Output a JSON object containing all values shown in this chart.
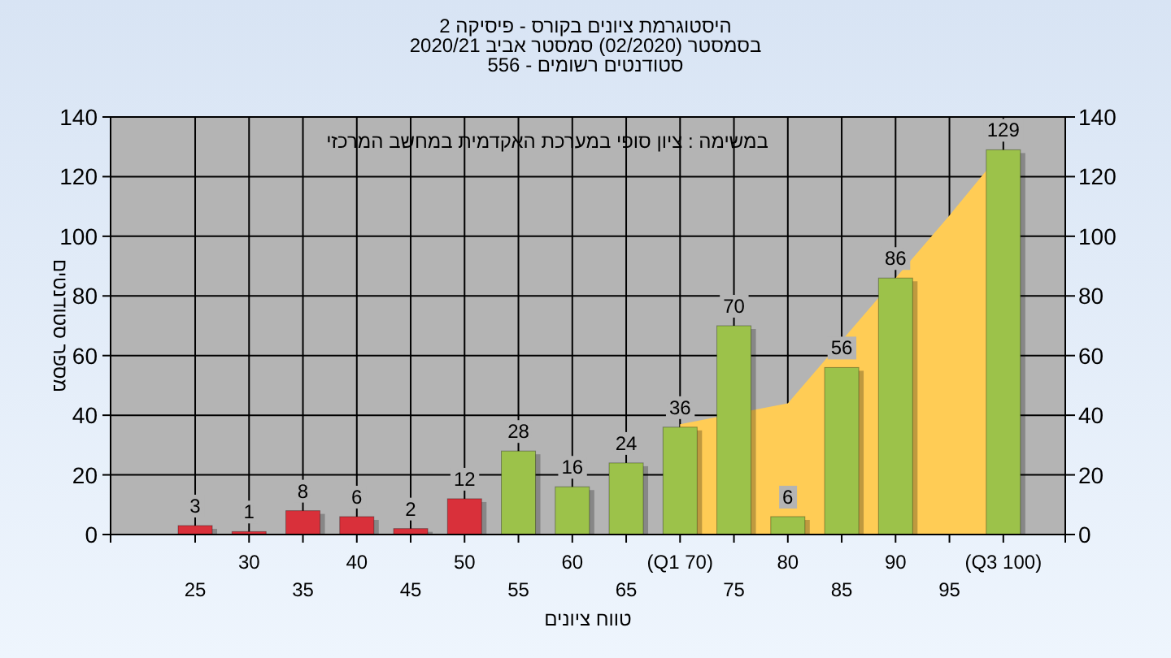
{
  "chart_data": {
    "type": "bar",
    "title": "היסטוגרמת ציונים בקורס - פיסיקה 2",
    "subtitle": [
      "בסמסטר  (02/2020)  סמסטר אביב 2020/21",
      "סטודנטים רשומים - 556"
    ],
    "xlabel": "טווח ציונים",
    "ylabel": "מספר סטודנטים",
    "annotations": [
      "במשימה : ציון סופי במערכת האקדמית במחשב המרכזי"
    ],
    "categories": [
      "25",
      "30",
      "35",
      "40",
      "45",
      "50",
      "55",
      "60",
      "65",
      "(Q1 70)",
      "75",
      "80",
      "85",
      "90",
      "95",
      "(Q3 100)"
    ],
    "series": [
      {
        "type": "area",
        "color": "#ffcc55",
        "values": [
          null,
          null,
          null,
          null,
          null,
          null,
          null,
          null,
          null,
          37,
          null,
          44,
          null,
          86,
          107,
          129
        ]
      },
      {
        "value_labels": [
          "3",
          "1",
          "8",
          "6",
          "2",
          "12",
          "28",
          "16",
          "24",
          "36",
          "70",
          "6",
          "56",
          "86",
          null,
          "129"
        ],
        "colors": [
          "#d9303a",
          "#d9303a",
          "#d9303a",
          "#d9303a",
          "#d9303a",
          "#d9303a",
          "#9cc24a",
          "#9cc24a",
          "#9cc24a",
          "#9cc24a",
          "#9cc24a",
          "#9cc24a",
          "#9cc24a",
          "#9cc24a",
          "#9cc24a",
          "#9cc24a"
        ],
        "values": [
          3,
          1,
          8,
          6,
          2,
          12,
          28,
          16,
          24,
          36,
          70,
          6,
          56,
          86,
          null,
          129
        ]
      }
    ],
    "ylim": [
      0,
      140
    ],
    "yticks": [
      0,
      20,
      40,
      60,
      80,
      100,
      120,
      140
    ],
    "y2lim": [
      0,
      140
    ],
    "y2ticks": [
      0,
      20,
      40,
      60,
      80,
      100,
      120,
      140
    ],
    "grid": true
  }
}
